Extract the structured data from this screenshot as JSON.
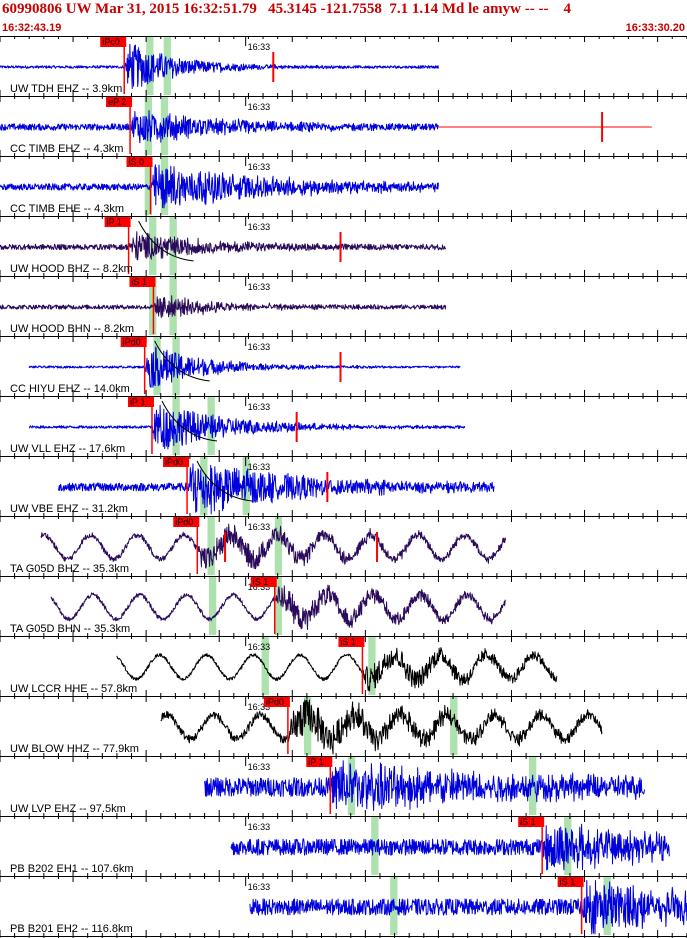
{
  "header": {
    "title": "60990806 UW Mar 31, 2015 16:32:51.79   45.3145 -121.7558  7.1 1.14 Md le amyw -- --    4",
    "start_time": "16:32:43.19",
    "end_time": "16:33:30.20"
  },
  "colors": {
    "header_text": "#c80000",
    "trace_blue": "#0000dd",
    "trace_purple": "#2a0a5a",
    "trace_black": "#000000",
    "pick_red": "#ff0000",
    "window_green": "#9fdc9f"
  },
  "chart_data": {
    "type": "line",
    "xlabel": "",
    "ylabel": "",
    "x_range_seconds": [
      0,
      47.01
    ],
    "minute_tick_label": "16:33",
    "minute_tick_seconds": 16.81,
    "traces": [
      {
        "label": "UW TDH EHZ -- 3.9km",
        "pick": "iPc0",
        "pick_s": 8.5,
        "color": "blue",
        "noise": 0.05,
        "ampl": 1.0,
        "decay": 3.5,
        "dur": 32,
        "rs": 0,
        "re": 30,
        "tail_s": 30,
        "tail_e": 30,
        "green": [
          [
            10.0,
            10.5
          ],
          [
            11.2,
            11.7
          ]
        ],
        "red_marks": [
          18.7
        ],
        "arc": false
      },
      {
        "label": "CC TIMB EHZ -- 4.3km",
        "pick": "eP 2",
        "pick_s": 8.9,
        "color": "blue",
        "noise": 0.12,
        "ampl": 0.7,
        "decay": 6,
        "dur": 32,
        "rs": 0,
        "re": 30,
        "tail_s": 30,
        "tail_e": 44.6,
        "green": [
          [
            9.9,
            10.4
          ],
          [
            11.0,
            11.5
          ]
        ],
        "red_marks": [
          41.2
        ],
        "arc": false
      },
      {
        "label": "CC TIMB EHE -- 4.3km",
        "pick": "iS 0",
        "pick_s": 10.3,
        "color": "blue",
        "noise": 0.12,
        "ampl": 0.9,
        "decay": 8,
        "dur": 32,
        "rs": 0,
        "re": 30,
        "tail_s": 30,
        "tail_e": 30,
        "green": [
          [
            9.9,
            10.4
          ],
          [
            11.0,
            11.5
          ]
        ],
        "red_marks": [],
        "arc": false
      },
      {
        "label": "UW HOOD BHZ -- 8.2km",
        "pick": "iP 1",
        "pick_s": 8.8,
        "color": "purple",
        "noise": 0.1,
        "ampl": 0.6,
        "decay": 5,
        "dur": 31,
        "rs": 0,
        "re": 30.5,
        "tail_s": 30.5,
        "tail_e": 30.5,
        "green": [
          [
            10.2,
            10.7
          ],
          [
            11.6,
            12.1
          ]
        ],
        "red_marks": [
          23.3
        ],
        "arc": true
      },
      {
        "label": "UW HOOD BHN -- 8.2km",
        "pick": "iS 1",
        "pick_s": 10.5,
        "color": "purple",
        "noise": 0.08,
        "ampl": 0.5,
        "decay": 4,
        "dur": 31,
        "rs": 0,
        "re": 30.5,
        "tail_s": 30.5,
        "tail_e": 30.5,
        "green": [
          [
            10.2,
            10.7
          ],
          [
            11.6,
            12.1
          ]
        ],
        "red_marks": [],
        "arc": false
      },
      {
        "label": "CC HIYU EHZ -- 14.0km",
        "pick": "iPd0",
        "pick_s": 9.9,
        "color": "blue",
        "noise": 0.04,
        "ampl": 0.9,
        "decay": 4,
        "dur": 31,
        "rs": 2,
        "re": 31.5,
        "tail_s": 31.5,
        "tail_e": 31.5,
        "green": [
          [
            10.5,
            11.0
          ],
          [
            11.8,
            12.3
          ]
        ],
        "red_marks": [
          23.3
        ],
        "arc": true
      },
      {
        "label": "UW VLL EHZ -- 17.6km",
        "pick": "iP 1",
        "pick_s": 10.4,
        "color": "blue",
        "noise": 0.05,
        "ampl": 1.0,
        "decay": 5,
        "dur": 31,
        "rs": 2,
        "re": 31.8,
        "tail_s": 31.8,
        "tail_e": 31.8,
        "green": [
          [
            11.8,
            12.3
          ],
          [
            14.2,
            14.7
          ]
        ],
        "red_marks": [
          20.3
        ],
        "arc": true
      },
      {
        "label": "UW VBE EHZ -- 31.2km",
        "pick": "iPd0",
        "pick_s": 12.8,
        "color": "blue",
        "noise": 0.15,
        "ampl": 1.1,
        "decay": 7,
        "dur": 32,
        "rs": 4,
        "re": 33.8,
        "tail_s": 33.8,
        "tail_e": 33.8,
        "green": [
          [
            13.7,
            14.2
          ],
          [
            16.6,
            17.1
          ]
        ],
        "red_marks": [
          22.4
        ],
        "arc": true
      },
      {
        "label": "TA G05D BHZ -- 35.3km",
        "pick": "iPd0",
        "pick_s": 13.5,
        "color": "purple",
        "noise": 0.1,
        "ampl": 0.5,
        "decay": 10,
        "dur": 32,
        "rs": 2.8,
        "re": 34.6,
        "tail_s": 34.6,
        "tail_e": 34.6,
        "green": [
          [
            14.2,
            14.7
          ],
          [
            18.8,
            19.3
          ]
        ],
        "red_marks": [
          15.4,
          25.8
        ],
        "arc": false
      },
      {
        "label": "TA G05D BHN -- 35.3km",
        "pick": "iS 1",
        "pick_s": 18.8,
        "color": "purple",
        "noise": 0.08,
        "ampl": 0.5,
        "decay": 10,
        "dur": 32,
        "rs": 3.5,
        "re": 34.6,
        "tail_s": 34.6,
        "tail_e": 34.6,
        "green": [
          [
            14.3,
            14.8
          ],
          [
            18.8,
            19.3
          ]
        ],
        "red_marks": [],
        "arc": false
      },
      {
        "label": "UW LCCR HHE -- 57.8km",
        "pick": "iS 1",
        "pick_s": 24.8,
        "color": "black",
        "noise": 0.06,
        "ampl": 0.5,
        "decay": 10,
        "dur": 32,
        "rs": 8,
        "re": 38.1,
        "tail_s": 38.1,
        "tail_e": 38.1,
        "green": [
          [
            17.9,
            18.4
          ],
          [
            25.2,
            25.7
          ]
        ],
        "red_marks": [],
        "arc": false
      },
      {
        "label": "UW BLOW HHZ -- 77.9km",
        "pick": "iPd0",
        "pick_s": 19.7,
        "color": "black",
        "noise": 0.15,
        "ampl": 0.7,
        "decay": 10,
        "dur": 32,
        "rs": 11,
        "re": 41.2,
        "tail_s": 41.2,
        "tail_e": 41.2,
        "green": [
          [
            20.8,
            21.3
          ],
          [
            30.8,
            31.3
          ]
        ],
        "red_marks": [],
        "arc": false
      },
      {
        "label": "UW LVP EHZ -- 97.5km",
        "pick": "iP 1",
        "pick_s": 22.6,
        "color": "blue",
        "noise": 0.35,
        "ampl": 0.9,
        "decay": 12,
        "dur": 32,
        "rs": 14,
        "re": 44.1,
        "tail_s": 44.1,
        "tail_e": 44.1,
        "green": [
          [
            23.8,
            24.3
          ],
          [
            36.2,
            36.7
          ]
        ],
        "red_marks": [],
        "arc": false
      },
      {
        "label": "PB B202 EH1 -- 107.6km",
        "pick": "iS 1",
        "pick_s": 37.1,
        "color": "blue",
        "noise": 0.3,
        "ampl": 0.9,
        "decay": 8,
        "dur": 32,
        "rs": 15.8,
        "re": 45.8,
        "tail_s": 45.8,
        "tail_e": 45.8,
        "green": [
          [
            25.4,
            25.9
          ],
          [
            38.6,
            39.1
          ]
        ],
        "red_marks": [],
        "arc": false
      },
      {
        "label": "PB B201 EH2 -- 116.8km",
        "pick": "iS 1",
        "pick_s": 39.8,
        "color": "blue",
        "noise": 0.3,
        "ampl": 1.0,
        "decay": 8,
        "dur": 32,
        "rs": 17.1,
        "re": 47.0,
        "tail_s": 47.0,
        "tail_e": 47.0,
        "green": [
          [
            26.7,
            27.2
          ],
          [
            41.3,
            41.8
          ]
        ],
        "red_marks": [],
        "arc": false
      }
    ]
  }
}
